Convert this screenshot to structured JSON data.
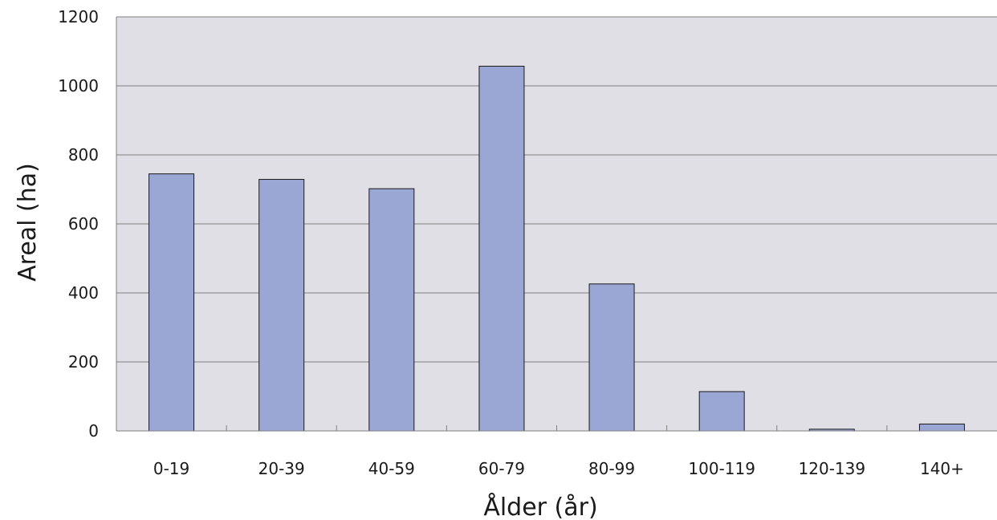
{
  "chart_data": {
    "type": "bar",
    "title": "",
    "xlabel": "Ålder (år)",
    "ylabel": "Areal (ha)",
    "categories": [
      "0-19",
      "20-39",
      "40-59",
      "60-79",
      "80-99",
      "100-119",
      "120-139",
      "140+"
    ],
    "series": [
      {
        "values": [
          745,
          729,
          702,
          1057,
          426,
          114,
          5,
          20
        ]
      }
    ],
    "ylim": [
      0,
      1200
    ],
    "yticks": [
      "0",
      "200",
      "400",
      "600",
      "800",
      "1000",
      "1200"
    ],
    "grid": true,
    "legend": "none",
    "colors": {
      "plot_background": "#e0dfe5",
      "bar_fill": "#9aa6d4",
      "bar_stroke": "#1a1a1a",
      "gridline": "#808080",
      "axis": "#808080"
    }
  }
}
